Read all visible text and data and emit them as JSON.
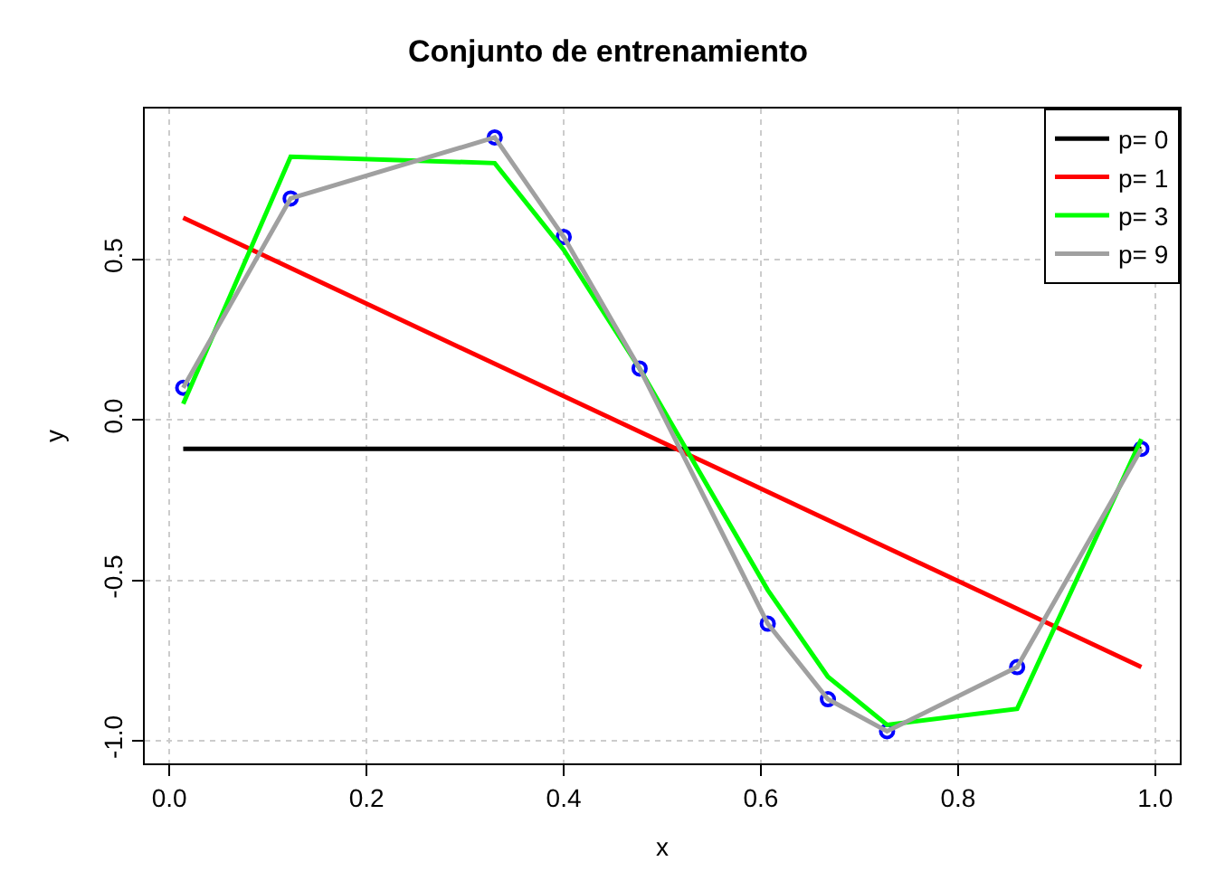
{
  "chart_data": {
    "type": "line",
    "title": "Conjunto de entrenamiento",
    "xlabel": "x",
    "ylabel": "y",
    "xlim": [
      -0.025,
      1.025
    ],
    "xticks": [
      {
        "value": 0,
        "label": "0.0"
      },
      0.2,
      0.4,
      0.6,
      0.8,
      {
        "value": 1,
        "label": "1.0"
      }
    ],
    "ylim": [
      -1.07,
      0.97
    ],
    "yticks": [
      {
        "value": -1,
        "label": "-1.0"
      },
      -0.5,
      {
        "value": 0,
        "label": "0.0"
      },
      0.5
    ],
    "grid": true,
    "legend": "top right",
    "line_style": "solid",
    "marker": "none",
    "series": [
      {
        "type": "scatter",
        "marker": "circle",
        "color": "#0000ff",
        "x": [
          0.014,
          0.123,
          0.33,
          0.4,
          0.477,
          0.607,
          0.668,
          0.728,
          0.86,
          0.986
        ],
        "values": [
          0.1,
          0.69,
          0.88,
          0.57,
          0.16,
          -0.635,
          -0.87,
          -0.97,
          -0.77,
          -0.09
        ]
      },
      {
        "name": "p= 0",
        "color": "#000000",
        "x": [
          0.014,
          0.986
        ],
        "values": [
          -0.09,
          -0.09
        ]
      },
      {
        "name": "p= 1",
        "color": "#ff0000",
        "x": [
          0.014,
          0.986
        ],
        "values": [
          0.63,
          -0.77
        ]
      },
      {
        "name": "p= 3",
        "color": "#00ff00",
        "x": [
          0.014,
          0.123,
          0.33,
          0.4,
          0.477,
          0.607,
          0.668,
          0.728,
          0.86,
          0.986
        ],
        "values": [
          0.05,
          0.82,
          0.8,
          0.53,
          0.16,
          -0.53,
          -0.8,
          -0.95,
          -0.9,
          -0.06
        ]
      },
      {
        "name": "p= 9",
        "color": "#a0a0a0",
        "x": [
          0.014,
          0.123,
          0.33,
          0.4,
          0.477,
          0.607,
          0.668,
          0.728,
          0.86,
          0.986
        ],
        "values": [
          0.1,
          0.69,
          0.88,
          0.57,
          0.16,
          -0.635,
          -0.87,
          -0.97,
          -0.77,
          -0.09
        ]
      }
    ]
  }
}
